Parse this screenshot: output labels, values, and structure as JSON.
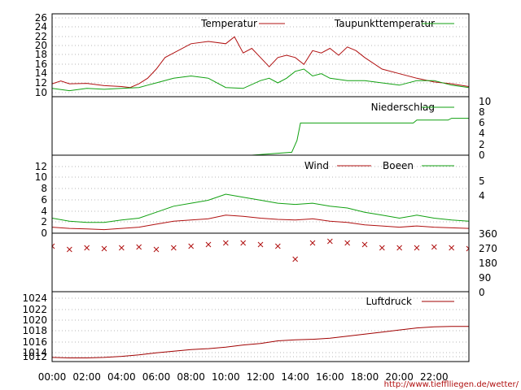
{
  "source_url": "http://www.tiefflliegen.de/wetter/",
  "colors": {
    "red": "#b01010",
    "green": "#10a010",
    "darkred": "#a00000",
    "olive": "#7a7a20"
  },
  "chart_data": {
    "type": "line",
    "x_ticks": [
      "00:00",
      "02:00",
      "04:00",
      "06:00",
      "08:00",
      "10:00",
      "12:00",
      "14:00",
      "16:00",
      "18:00",
      "20:00",
      "22:00"
    ],
    "panels": [
      {
        "id": "temperature",
        "yticks_left": [
          "26",
          "24",
          "22",
          "20",
          "18",
          "16",
          "14",
          "12",
          "10"
        ],
        "ylim": [
          9,
          27
        ],
        "series": [
          {
            "name": "Temperatur",
            "color": "#b01010",
            "hours": [
              0,
              0.5,
              1,
              2,
              3,
              4,
              4.5,
              5,
              5.5,
              6,
              6.5,
              7,
              8,
              9,
              10,
              10.5,
              11,
              11.5,
              12,
              12.5,
              13,
              13.5,
              14,
              14.5,
              15,
              15.5,
              16,
              16.5,
              17,
              17.5,
              18,
              19,
              20,
              21,
              22,
              23,
              24
            ],
            "values": [
              11.8,
              12.4,
              11.8,
              11.9,
              11.4,
              11.2,
              11.0,
              11.8,
              13.0,
              15.0,
              17.5,
              18.5,
              20.5,
              21.0,
              20.5,
              22.0,
              18.5,
              19.5,
              17.5,
              15.5,
              17.5,
              18.0,
              17.5,
              16.0,
              19.0,
              18.5,
              19.5,
              18.0,
              19.8,
              19.0,
              17.5,
              15.0,
              14.0,
              13.0,
              12.2,
              11.8,
              11.2
            ]
          },
          {
            "name": "Taupunkttemperatur",
            "color": "#10a010",
            "hours": [
              0,
              1,
              2,
              3,
              4,
              5,
              5.5,
              6,
              7,
              8,
              9,
              10,
              11,
              12,
              12.5,
              13,
              13.5,
              14,
              14.5,
              15,
              15.5,
              16,
              17,
              18,
              19,
              20,
              21,
              22,
              23,
              24
            ],
            "values": [
              10.8,
              10.3,
              10.8,
              10.6,
              10.8,
              11.0,
              11.5,
              12.0,
              13.0,
              13.5,
              13.0,
              11.0,
              10.8,
              12.5,
              13.0,
              12.0,
              13.0,
              14.5,
              15.0,
              13.5,
              14.0,
              13.0,
              12.5,
              12.5,
              12.0,
              11.5,
              12.5,
              12.5,
              11.5,
              11.0
            ]
          }
        ]
      },
      {
        "id": "precipitation",
        "yticks_right": [
          "10",
          "8",
          "6",
          "4",
          "2",
          "0"
        ],
        "ylim": [
          0,
          10
        ],
        "series": [
          {
            "name": "Niederschlag",
            "color": "#10a010",
            "hours": [
              0,
              11.5,
              13.8,
              14.1,
              14.3,
              20.8,
              21.0,
              22.8,
              23.0,
              24
            ],
            "values": [
              0,
              0,
              0.5,
              2.5,
              5.5,
              5.5,
              6.0,
              6.0,
              6.3,
              6.3
            ]
          }
        ]
      },
      {
        "id": "wind",
        "yticks_left": [
          "12",
          "10",
          "8",
          "6",
          "4",
          "2",
          "0"
        ],
        "yticks_right": [
          "5",
          "4"
        ],
        "ylim": [
          0,
          13
        ],
        "series": [
          {
            "name": "Wind",
            "color": "#b01010",
            "hours": [
              0,
              1,
              2,
              3,
              4,
              5,
              6,
              7,
              8,
              9,
              10,
              11,
              12,
              13,
              14,
              15,
              16,
              17,
              18,
              19,
              20,
              21,
              22,
              23,
              24
            ],
            "values": [
              1.0,
              0.8,
              0.7,
              0.6,
              0.8,
              1.0,
              1.5,
              2.0,
              2.2,
              2.4,
              3.0,
              2.8,
              2.5,
              2.3,
              2.2,
              2.4,
              2.0,
              1.8,
              1.4,
              1.2,
              1.0,
              1.2,
              1.0,
              0.9,
              0.8
            ]
          },
          {
            "name": "Boeen",
            "color": "#10a010",
            "hours": [
              0,
              1,
              2,
              3,
              4,
              5,
              6,
              7,
              8,
              9,
              10,
              11,
              12,
              13,
              14,
              15,
              16,
              17,
              18,
              19,
              20,
              21,
              22,
              23,
              24
            ],
            "values": [
              2.5,
              2.0,
              1.8,
              1.8,
              2.2,
              2.5,
              3.5,
              4.5,
              5.0,
              5.5,
              6.5,
              6.0,
              5.5,
              5.0,
              4.8,
              5.0,
              4.5,
              4.2,
              3.5,
              3.0,
              2.5,
              3.0,
              2.5,
              2.2,
              2.0
            ]
          }
        ]
      },
      {
        "id": "wind-direction",
        "yticks_right": [
          "360",
          "270",
          "180",
          "90",
          "0"
        ],
        "ylim": [
          0,
          360
        ],
        "series": [
          {
            "name": "",
            "color": "#b01010",
            "hours": [
              0,
              1,
              2,
              3,
              4,
              5,
              6,
              7,
              8,
              9,
              10,
              11,
              12,
              13,
              14,
              15,
              16,
              17,
              18,
              19,
              20,
              21,
              22,
              23,
              24
            ],
            "values": [
              280,
              260,
              270,
              265,
              270,
              275,
              260,
              270,
              280,
              290,
              300,
              300,
              290,
              280,
              200,
              300,
              310,
              300,
              290,
              270,
              270,
              270,
              275,
              270,
              265
            ]
          }
        ]
      },
      {
        "id": "pressure",
        "yticks_left": [
          "1024",
          "1022",
          "1020",
          "1018",
          "1016",
          "1014",
          "1012"
        ],
        "ylim": [
          1011.5,
          1025
        ],
        "series": [
          {
            "name": "Luftdruck",
            "color": "#a00000",
            "hours": [
              0,
              1,
              2,
              3,
              4,
              5,
              6,
              7,
              8,
              9,
              10,
              11,
              12,
              13,
              14,
              15,
              16,
              17,
              18,
              19,
              20,
              21,
              22,
              23,
              24
            ],
            "values": [
              1012.3,
              1012.2,
              1012.2,
              1012.3,
              1012.5,
              1012.8,
              1013.2,
              1013.5,
              1013.8,
              1014.0,
              1014.3,
              1014.7,
              1015.0,
              1015.5,
              1015.7,
              1015.8,
              1016.0,
              1016.4,
              1016.8,
              1017.2,
              1017.6,
              1018.0,
              1018.2,
              1018.3,
              1018.3
            ]
          }
        ]
      }
    ]
  }
}
